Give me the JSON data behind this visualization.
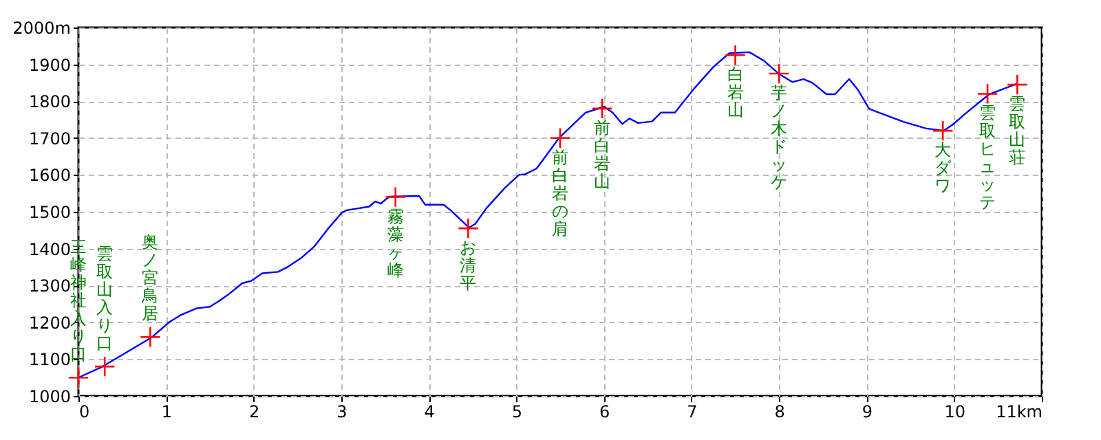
{
  "chart_data": {
    "type": "line",
    "xlim": [
      0,
      11
    ],
    "ylim": [
      1000,
      2000
    ],
    "xticks": [
      0,
      1,
      2,
      3,
      4,
      5,
      6,
      7,
      8,
      9,
      10,
      {
        "value": 11,
        "label": "11km"
      }
    ],
    "yticks": [
      1000,
      1100,
      1200,
      1300,
      1400,
      1500,
      1600,
      1700,
      1800,
      1900,
      {
        "value": 2000,
        "label": "2000m"
      }
    ],
    "grid": true,
    "series": [
      {
        "type": "line",
        "color": "#0000ff",
        "marker": "none",
        "x": [
          0,
          0.26,
          0.83,
          1.04,
          1.17,
          1.35,
          1.5,
          1.6,
          1.71,
          1.87,
          1.97,
          2.1,
          2.28,
          2.38,
          2.54,
          2.69,
          2.85,
          3.01,
          3.06,
          3.32,
          3.39,
          3.45,
          3.55,
          3.89,
          3.96,
          4.17,
          4.25,
          4.46,
          4.53,
          4.66,
          4.87,
          5.03,
          5.1,
          5.23,
          5.28,
          5.49,
          5.79,
          6.0,
          6.1,
          6.21,
          6.29,
          6.39,
          6.55,
          6.65,
          6.81,
          7.04,
          7.25,
          7.43,
          7.66,
          7.82,
          8.0,
          8.15,
          8.28,
          8.38,
          8.54,
          8.64,
          8.8,
          8.9,
          9.03,
          9.21,
          9.42,
          9.68,
          9.88,
          9.98,
          10.14,
          10.4,
          10.71
        ],
        "values": [
          1050,
          1078,
          1158,
          1201,
          1220,
          1238,
          1242,
          1257,
          1275,
          1306,
          1312,
          1333,
          1337,
          1349,
          1374,
          1405,
          1454,
          1498,
          1504,
          1514,
          1528,
          1522,
          1541,
          1543,
          1519,
          1519,
          1504,
          1457,
          1467,
          1510,
          1565,
          1600,
          1602,
          1617,
          1633,
          1701,
          1769,
          1785,
          1769,
          1738,
          1753,
          1741,
          1745,
          1769,
          1769,
          1837,
          1893,
          1930,
          1933,
          1911,
          1874,
          1852,
          1860,
          1850,
          1819,
          1819,
          1860,
          1831,
          1779,
          1763,
          1744,
          1726,
          1720,
          1736,
          1769,
          1819,
          1847
        ]
      },
      {
        "type": "scatter",
        "color": "#ff0000",
        "marker": "cross",
        "x": [
          0,
          0.3,
          0.82,
          3.62,
          4.45,
          5.5,
          5.98,
          7.5,
          8.0,
          9.87,
          10.38,
          10.72
        ],
        "values": [
          1050,
          1080,
          1160,
          1540,
          1455,
          1700,
          1780,
          1925,
          1875,
          1720,
          1820,
          1845
        ]
      }
    ],
    "annotations": [
      {
        "text": "三峰神社入り口",
        "x": 0,
        "y": 1050
      },
      {
        "text": "雲取山入り口",
        "x": 0.3,
        "y": 1080
      },
      {
        "text": "奥ノ宮鳥居",
        "x": 0.82,
        "y": 1160
      },
      {
        "text": "霧藻ヶ峰",
        "x": 3.62,
        "y": 1540
      },
      {
        "text": "お清平",
        "x": 4.45,
        "y": 1455
      },
      {
        "text": "前白岩の肩",
        "x": 5.5,
        "y": 1700
      },
      {
        "text": "前白岩山",
        "x": 5.98,
        "y": 1780
      },
      {
        "text": "白岩山",
        "x": 7.5,
        "y": 1925
      },
      {
        "text": "芋ノ木ドッケ",
        "x": 8.0,
        "y": 1875
      },
      {
        "text": "大ダワ",
        "x": 9.87,
        "y": 1720
      },
      {
        "text": "雲取ヒュッテ",
        "x": 10.38,
        "y": 1820
      },
      {
        "text": "雲取山荘",
        "x": 10.72,
        "y": 1845
      }
    ]
  }
}
